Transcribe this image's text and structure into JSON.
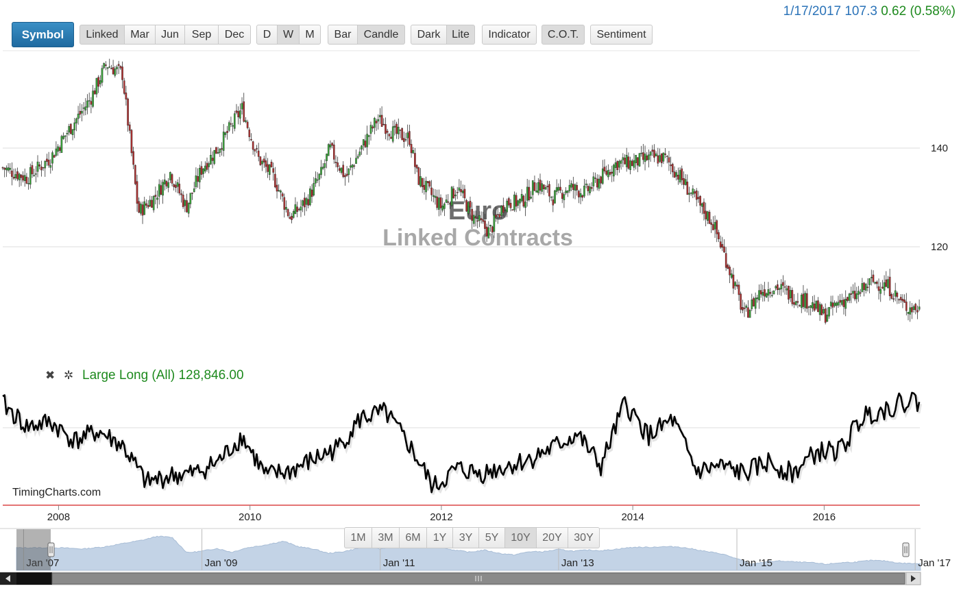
{
  "quote": {
    "date_price": "1/17/2017 107.3",
    "change": "0.62 (0.58%)"
  },
  "toolbar": {
    "symbol": "Symbol",
    "contracts": [
      "Linked",
      "Mar",
      "Jun",
      "Sep",
      "Dec"
    ],
    "periods": [
      "D",
      "W",
      "M"
    ],
    "styles": [
      "Bar",
      "Candle"
    ],
    "themes": [
      "Dark",
      "Lite"
    ],
    "indicator": "Indicator",
    "cot": "C.O.T.",
    "sentiment": "Sentiment"
  },
  "watermark_text": {
    "line1": "Euro",
    "line2": "Linked Contracts"
  },
  "indicator": {
    "close_icon": "close-icon",
    "settings_icon": "gear-icon",
    "label": "Large Long (All) 128,846.00"
  },
  "site_label": "TimingCharts.com",
  "range_buttons": [
    "1M",
    "3M",
    "6M",
    "1Y",
    "3Y",
    "5Y",
    "10Y",
    "20Y",
    "30Y"
  ],
  "navigator_labels": [
    "Jan '07",
    "Jan '09",
    "Jan '11",
    "Jan '13",
    "Jan '15",
    "Jan '17"
  ],
  "colors": {
    "up_candle": "#3aa63a",
    "down_candle": "#b03030",
    "indicator_line": "#000000",
    "accent": "#2b73b8",
    "separator": "#d42020"
  },
  "chart_data": [
    {
      "type": "candlestick",
      "series": [
        {
          "name": "Euro Linked Contracts",
          "freq": "weekly"
        }
      ],
      "y_ticks": [
        120,
        140
      ],
      "ylim": [
        101,
        160
      ],
      "x_ticks": [
        "2008",
        "2010",
        "2012",
        "2014",
        "2016"
      ],
      "xlim": [
        "2007-06",
        "2017-01"
      ],
      "grid": true,
      "x": [
        "2007-06",
        "2007-09",
        "2007-12",
        "2008-02",
        "2008-05",
        "2008-07",
        "2008-09",
        "2008-10",
        "2008-11",
        "2009-01",
        "2009-03",
        "2009-05",
        "2009-07",
        "2009-09",
        "2009-12",
        "2010-02",
        "2010-04",
        "2010-06",
        "2010-08",
        "2010-10",
        "2010-11",
        "2011-01",
        "2011-03",
        "2011-05",
        "2011-07",
        "2011-09",
        "2011-10",
        "2012-01",
        "2012-03",
        "2012-05",
        "2012-07",
        "2012-09",
        "2012-11",
        "2013-01",
        "2013-03",
        "2013-05",
        "2013-07",
        "2013-09",
        "2013-11",
        "2014-01",
        "2014-03",
        "2014-05",
        "2014-07",
        "2014-09",
        "2014-11",
        "2015-01",
        "2015-03",
        "2015-05",
        "2015-07",
        "2015-09",
        "2015-11",
        "2016-01",
        "2016-03",
        "2016-05",
        "2016-07",
        "2016-09",
        "2016-11",
        "2017-01"
      ],
      "close": [
        136,
        134,
        138,
        143,
        150,
        157,
        155,
        141,
        127,
        130,
        135,
        128,
        136,
        140,
        148,
        138,
        134,
        126,
        129,
        135,
        140,
        134,
        140,
        146,
        143,
        142,
        134,
        128,
        132,
        126,
        123,
        129,
        129,
        133,
        130,
        132,
        131,
        134,
        137,
        137,
        138,
        138,
        134,
        129,
        125,
        116,
        106,
        111,
        112,
        110,
        109,
        106,
        109,
        110,
        113,
        112,
        108,
        107.3
      ]
    },
    {
      "type": "line",
      "series": [
        {
          "name": "Large Long (All)"
        }
      ],
      "last_value": 128846,
      "x": [
        "2007-06",
        "2007-09",
        "2007-12",
        "2008-03",
        "2008-06",
        "2008-09",
        "2008-12",
        "2009-03",
        "2009-06",
        "2009-09",
        "2009-12",
        "2010-03",
        "2010-06",
        "2010-09",
        "2010-12",
        "2011-03",
        "2011-06",
        "2011-09",
        "2011-12",
        "2012-03",
        "2012-06",
        "2012-09",
        "2012-12",
        "2013-03",
        "2013-06",
        "2013-09",
        "2013-12",
        "2014-03",
        "2014-06",
        "2014-09",
        "2014-12",
        "2015-03",
        "2015-06",
        "2015-09",
        "2015-12",
        "2016-03",
        "2016-06",
        "2016-09",
        "2016-12",
        "2017-01"
      ],
      "values": [
        88,
        78,
        80,
        72,
        76,
        70,
        54,
        57,
        58,
        63,
        74,
        57,
        59,
        64,
        69,
        82,
        84,
        70,
        52,
        60,
        58,
        61,
        64,
        69,
        75,
        61,
        88,
        74,
        81,
        59,
        61,
        58,
        63,
        58,
        67,
        68,
        83,
        86,
        90,
        88
      ]
    }
  ]
}
